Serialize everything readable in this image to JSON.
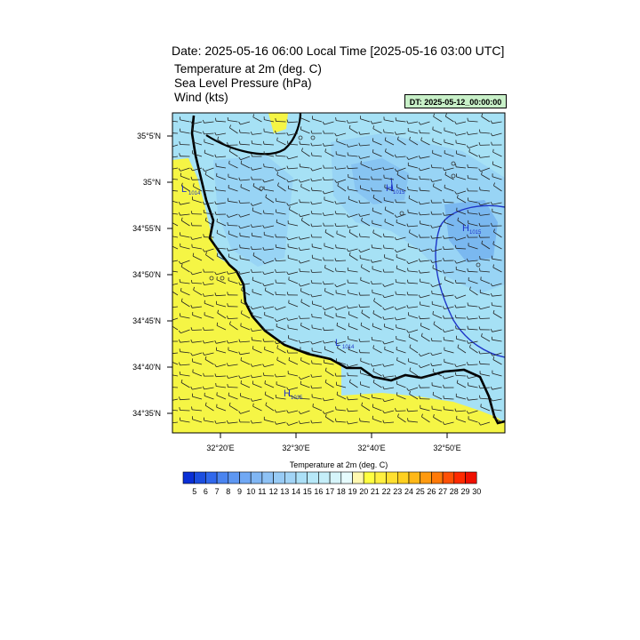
{
  "title": "Date: 2025-05-16  06:00 Local Time [2025-05-16  03:00 UTC]",
  "fields": [
    "Temperature at 2m   (deg. C)",
    "Sea Level Pressure   (hPa)",
    "Wind   (kts)"
  ],
  "dt_label": "DT: 2025-05-12_00:00:00",
  "map": {
    "lat_ticks": [
      "35°5'N",
      "35°N",
      "34°55'N",
      "34°50'N",
      "34°45'N",
      "34°40'N",
      "34°35'N"
    ],
    "lon_ticks": [
      "32°20'E",
      "32°30'E",
      "32°40'E",
      "32°50'E"
    ],
    "pressure_markers": [
      {
        "type": "L",
        "value": "1014"
      },
      {
        "type": "H",
        "value": "1015"
      },
      {
        "type": "H",
        "value": "1015"
      },
      {
        "type": "L",
        "value": "1014"
      },
      {
        "type": "H",
        "value": "1015"
      }
    ],
    "colors": {
      "land_warm": "#f5f545",
      "land_cool": "#a6e1f5",
      "land_cooler": "#8fd2f5",
      "land_coolest": "#7ab8f0",
      "contour": "#1f36c8",
      "marker_text": "#1f36c8"
    }
  },
  "colorbar": {
    "title": "Temperature at 2m  (deg. C)",
    "labels": [
      "5",
      "6",
      "7",
      "8",
      "9",
      "10",
      "11",
      "12",
      "13",
      "14",
      "15",
      "16",
      "17",
      "18",
      "19",
      "20",
      "21",
      "22",
      "23",
      "24",
      "25",
      "26",
      "27",
      "28",
      "29",
      "30"
    ],
    "colors": [
      "#0a2fd6",
      "#1c4ee0",
      "#3068ec",
      "#4a84f0",
      "#5e97f2",
      "#70a8f4",
      "#80b6f4",
      "#8ec2f5",
      "#98cbf5",
      "#a2d4f6",
      "#ace0f7",
      "#b7e8f8",
      "#c5eef9",
      "#d6f5fb",
      "#e6fbfd",
      "#fff8b0",
      "#ffff40",
      "#fff040",
      "#ffe030",
      "#ffd020",
      "#ffb818",
      "#ff9a10",
      "#ff7a08",
      "#ff5005",
      "#ff2a00",
      "#f01000"
    ]
  }
}
